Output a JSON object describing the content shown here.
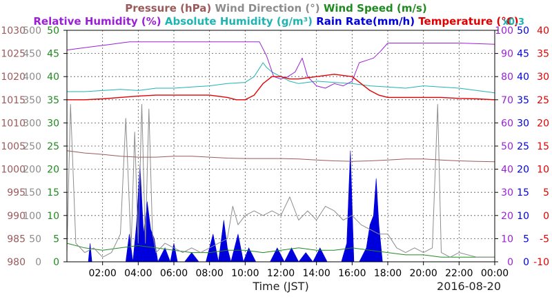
{
  "chart_data": {
    "type": "line",
    "date": "2016-08-20",
    "xlabel": "Time (JST)",
    "x_ticks": [
      "02:00",
      "04:00",
      "06:00",
      "08:00",
      "10:00",
      "12:00",
      "14:00",
      "16:00",
      "18:00",
      "20:00",
      "22:00",
      "00:00"
    ],
    "x_range_hours": [
      0,
      24
    ],
    "legend_row1": [
      {
        "text": "Pressure (hPa)",
        "color": "#9b5a5a"
      },
      {
        "text": "Wind Direction (°)",
        "color": "#8c8c8c"
      },
      {
        "text": "Wind Speed (m/s)",
        "color": "#1f8a1f"
      }
    ],
    "legend_row2": [
      {
        "text": "Relative Humidity (%)",
        "color": "#9b1fd6"
      },
      {
        "text": "Absolute Humidity (g/m³)",
        "color": "#1fb3b3"
      },
      {
        "text": "Rain Rate(mm/h)",
        "color": "#0000dd"
      },
      {
        "text": "Temperature (°C)",
        "color": "#e00000"
      }
    ],
    "rain_scale_note": "x0.3",
    "axes": {
      "pressure": {
        "color": "#9b5a5a",
        "range": [
          980,
          1030
        ],
        "ticks": [
          "1030",
          "1025",
          "1020",
          "1015",
          "1010",
          "1005",
          "1000",
          "995",
          "990",
          "985",
          "980"
        ]
      },
      "wind_direction": {
        "color": "#8c8c8c",
        "range": [
          0,
          500
        ],
        "ticks": [
          "500",
          "450",
          "400",
          "350",
          "300",
          "250",
          "200",
          "150",
          "100",
          "50",
          "0"
        ]
      },
      "wind_speed": {
        "color": "#1f8a1f",
        "range": [
          0,
          50
        ],
        "ticks": [
          "50",
          "45",
          "40",
          "35",
          "30",
          "25",
          "20",
          "15",
          "10",
          "5",
          "0"
        ]
      },
      "humidity": {
        "color": "#9b1fd6",
        "range": [
          0,
          100
        ],
        "ticks": [
          "100",
          "90",
          "80",
          "70",
          "60",
          "50",
          "40",
          "30",
          "20",
          "10",
          "0"
        ]
      },
      "rain": {
        "color": "#0000dd",
        "range": [
          0,
          50
        ],
        "ticks": [
          "50",
          "45",
          "40",
          "35",
          "30",
          "25",
          "20",
          "15",
          "10",
          "5",
          "0"
        ]
      },
      "temperature": {
        "color": "#e00000",
        "range": [
          -10,
          40
        ],
        "ticks": [
          "40",
          "35",
          "30",
          "25",
          "20",
          "15",
          "10",
          "5",
          "0",
          "-5",
          "-10"
        ]
      }
    },
    "series": [
      {
        "name": "Relative Humidity (%)",
        "axis": "humidity",
        "color": "#9b1fd6",
        "x": [
          0,
          0.5,
          1.5,
          2.5,
          3.5,
          4.5,
          6,
          8,
          10,
          10.8,
          11.2,
          11.6,
          12,
          12.4,
          12.8,
          13.2,
          13.5,
          14,
          14.5,
          15,
          15.5,
          16,
          16.4,
          16.8,
          17.2,
          17.6,
          18,
          20,
          22,
          24
        ],
        "y": [
          91.5,
          92,
          93,
          94,
          95,
          95,
          95,
          95,
          95,
          95,
          89,
          80,
          79,
          80,
          82,
          88,
          80,
          76,
          75,
          77,
          76,
          78,
          86,
          87,
          88,
          91,
          94.5,
          94.5,
          94.5,
          94
        ]
      },
      {
        "name": "Absolute Humidity (g/m³)",
        "axis": "humidity",
        "color": "#1fb3b3",
        "x": [
          0,
          1,
          2,
          3,
          4,
          5,
          6,
          7,
          8,
          9,
          10,
          10.5,
          11,
          11.2,
          11.5,
          12,
          12.5,
          13,
          14,
          15,
          16,
          17,
          18,
          19,
          20,
          21,
          22,
          23,
          24
        ],
        "y": [
          73.5,
          73.5,
          74,
          74.5,
          74,
          75,
          75,
          75.5,
          76,
          77,
          77.5,
          80,
          86,
          84,
          82,
          80,
          78,
          77,
          78,
          77.5,
          77,
          76,
          75.5,
          75,
          76,
          75.5,
          75,
          74,
          73
        ]
      },
      {
        "name": "Temperature (°C)",
        "axis": "temperature",
        "color": "#e00000",
        "x": [
          0,
          1,
          2,
          3,
          4,
          5,
          6,
          7,
          8,
          9,
          9.5,
          10,
          10.5,
          11,
          11.5,
          12,
          12.5,
          13,
          14,
          15,
          16,
          16.5,
          17,
          17.5,
          18,
          19,
          20,
          21,
          22,
          23,
          24
        ],
        "y": [
          25,
          25,
          25.2,
          25.5,
          25.8,
          26,
          26,
          26,
          26,
          25.5,
          25,
          25,
          26,
          28.5,
          30,
          30,
          29.5,
          29.5,
          30,
          30.5,
          30,
          28.5,
          27,
          26,
          25.5,
          25.5,
          25.5,
          25.5,
          25.3,
          25.2,
          25
        ]
      },
      {
        "name": "Pressure (hPa)",
        "axis": "pressure",
        "color": "#9b5a5a",
        "x": [
          0,
          1,
          2,
          3,
          4,
          5,
          6,
          7,
          8,
          9,
          10,
          11,
          12,
          13,
          14,
          15,
          16,
          17,
          18,
          19,
          20,
          21,
          22,
          23,
          24
        ],
        "y": [
          1004,
          1003.5,
          1003.2,
          1002.8,
          1002.6,
          1002.6,
          1002.8,
          1002.8,
          1002.6,
          1002.4,
          1002.3,
          1002.3,
          1002.3,
          1002.2,
          1002,
          1001.8,
          1001.7,
          1001.8,
          1002,
          1002.2,
          1002.2,
          1002,
          1001.8,
          1001.7,
          1001.6
        ]
      },
      {
        "name": "Wind Direction (°)",
        "axis": "wind_direction",
        "color": "#8c8c8c",
        "x": [
          0,
          0.2,
          0.5,
          1,
          1.5,
          2,
          2.5,
          3,
          3.3,
          3.6,
          3.8,
          4,
          4.2,
          4.4,
          4.6,
          4.8,
          5,
          5.5,
          6,
          6.5,
          7,
          7.5,
          8,
          8.5,
          9,
          9.3,
          9.6,
          10,
          10.5,
          11,
          11.5,
          12,
          12.5,
          13,
          13.5,
          14,
          14.5,
          15,
          15.5,
          16,
          16.5,
          17,
          17.5,
          18,
          18.5,
          19,
          19.5,
          20,
          20.5,
          20.8,
          21,
          21.5,
          22,
          23,
          24
        ],
        "y": [
          20,
          340,
          40,
          20,
          30,
          10,
          20,
          60,
          310,
          30,
          280,
          40,
          340,
          40,
          330,
          60,
          20,
          40,
          30,
          20,
          30,
          20,
          30,
          40,
          50,
          120,
          80,
          100,
          110,
          100,
          110,
          100,
          140,
          90,
          110,
          90,
          120,
          110,
          90,
          100,
          80,
          70,
          60,
          60,
          30,
          20,
          30,
          20,
          30,
          340,
          20,
          10,
          20,
          10,
          10
        ]
      },
      {
        "name": "Wind Speed (m/s)",
        "axis": "wind_speed",
        "color": "#1f8a1f",
        "x": [
          0,
          1,
          2,
          3,
          4,
          5,
          6,
          7,
          8,
          9,
          10,
          11,
          12,
          13,
          14,
          15,
          16,
          17,
          18,
          19,
          20,
          21,
          22,
          23,
          24
        ],
        "y": [
          4,
          3,
          2.5,
          3,
          3.5,
          3,
          2.5,
          2,
          2,
          2.5,
          2.5,
          2,
          2.5,
          3,
          2.5,
          2.5,
          3,
          2.5,
          2,
          1.5,
          1.5,
          1,
          1,
          1,
          1
        ]
      },
      {
        "name": "Rain Rate(mm/h)",
        "axis": "rain",
        "type": "area",
        "color": "#0000dd",
        "x": [
          0,
          1.2,
          1.3,
          1.4,
          2.2,
          3.3,
          3.5,
          3.7,
          3.9,
          4.1,
          4.3,
          4.5,
          4.7,
          4.9,
          5.1,
          5.5,
          5.8,
          6.0,
          6.2,
          6.6,
          7.0,
          7.4,
          7.8,
          8.2,
          8.5,
          8.8,
          9.0,
          9.2,
          9.6,
          9.9,
          10.2,
          10.6,
          11.0,
          11.4,
          11.8,
          12.2,
          12.6,
          13.0,
          13.4,
          13.8,
          14.2,
          14.6,
          15.0,
          15.4,
          15.7,
          15.9,
          16.1,
          16.4,
          16.8,
          17.0,
          17.2,
          17.35,
          17.5,
          17.7,
          18.0,
          18.5,
          19.0,
          24
        ],
        "y": [
          0,
          0,
          4,
          0,
          0,
          0,
          6,
          0,
          8,
          21,
          6,
          13,
          7,
          5,
          0,
          3,
          0,
          4,
          0,
          0,
          2,
          0,
          0,
          6,
          0,
          9,
          3,
          0,
          6,
          0,
          3,
          0,
          0,
          0,
          3,
          0,
          3,
          0,
          2,
          0,
          3,
          0,
          0,
          0,
          4,
          24,
          0,
          0,
          3,
          8,
          10,
          18,
          8,
          0,
          0,
          0,
          0,
          0
        ]
      }
    ]
  }
}
